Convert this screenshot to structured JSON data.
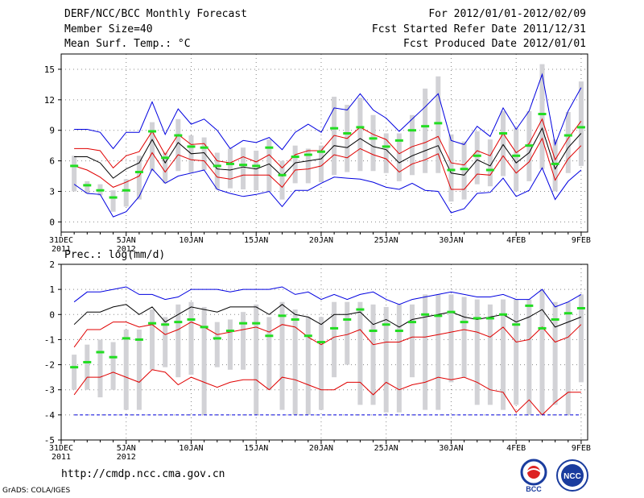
{
  "header": {
    "title": "DERF/NCC/BCC Monthly Forecast",
    "member": "Member Size=40",
    "variable": "Mean Surf. Temp.: °C",
    "period": "For 2012/01/01-2012/02/09",
    "refer": "Fcst Started Refer Date 2011/12/31",
    "produced": "Fcst Produced Date 2012/01/01"
  },
  "footer": {
    "url": "http://cmdp.ncc.cma.gov.cn",
    "grads": "GrADS: COLA/IGES",
    "logo_bcc": "BCC",
    "logo_ncc": "NCC"
  },
  "x_ticks": [
    {
      "day": 0,
      "label": "31DEC",
      "sub": "2011"
    },
    {
      "day": 5,
      "label": "5JAN",
      "sub": "2012"
    },
    {
      "day": 10,
      "label": "10JAN",
      "sub": ""
    },
    {
      "day": 15,
      "label": "15JAN",
      "sub": ""
    },
    {
      "day": 20,
      "label": "20JAN",
      "sub": ""
    },
    {
      "day": 25,
      "label": "25JAN",
      "sub": ""
    },
    {
      "day": 30,
      "label": "30JAN",
      "sub": ""
    },
    {
      "day": 35,
      "label": "4FEB",
      "sub": ""
    },
    {
      "day": 40,
      "label": "9FEB",
      "sub": ""
    }
  ],
  "chart_data": [
    {
      "type": "line",
      "title": "Mean Surf. Temp.: °C",
      "ylabel": "°C",
      "ylim": [
        -1,
        16.5
      ],
      "yticks": [
        0,
        3,
        6,
        9,
        12,
        15
      ],
      "x": [
        1,
        2,
        3,
        4,
        5,
        6,
        7,
        8,
        9,
        10,
        11,
        12,
        13,
        14,
        15,
        16,
        17,
        18,
        19,
        20,
        21,
        22,
        23,
        24,
        25,
        26,
        27,
        28,
        29,
        30,
        31,
        32,
        33,
        34,
        35,
        36,
        37,
        38,
        39,
        40
      ],
      "series": [
        {
          "name": "max",
          "color": "#0000e0",
          "values": [
            9.1,
            9.1,
            8.8,
            7.2,
            8.8,
            8.8,
            11.8,
            8.6,
            11.1,
            9.6,
            10.1,
            9.0,
            7.2,
            8.0,
            7.8,
            8.3,
            7.1,
            8.8,
            9.6,
            8.8,
            11.2,
            11.0,
            12.6,
            11.0,
            10.2,
            8.9,
            10.1,
            11.3,
            12.6,
            8.0,
            7.6,
            9.4,
            8.4,
            11.2,
            9.1,
            10.9,
            14.5,
            7.6,
            10.9,
            13.2
          ]
        },
        {
          "name": "upper",
          "color": "#e00000",
          "values": [
            7.2,
            7.2,
            7.0,
            5.3,
            6.5,
            6.9,
            8.9,
            6.6,
            8.6,
            7.6,
            7.7,
            6.0,
            5.8,
            6.4,
            5.9,
            6.6,
            5.3,
            6.6,
            7.0,
            7.0,
            8.5,
            8.2,
            9.3,
            8.6,
            8.1,
            6.7,
            7.4,
            7.8,
            8.4,
            5.8,
            5.6,
            7.0,
            6.5,
            8.7,
            6.8,
            7.7,
            10.1,
            6.1,
            8.2,
            9.9
          ]
        },
        {
          "name": "mean",
          "color": "#000000",
          "values": [
            6.4,
            6.4,
            5.8,
            4.3,
            5.2,
            5.8,
            8.1,
            5.8,
            7.8,
            6.7,
            6.8,
            5.2,
            5.1,
            5.4,
            5.2,
            5.7,
            4.5,
            5.8,
            6.0,
            6.2,
            7.5,
            7.3,
            8.2,
            7.4,
            7.1,
            5.8,
            6.5,
            7.0,
            7.5,
            4.8,
            4.6,
            6.1,
            5.5,
            7.6,
            5.8,
            6.8,
            9.2,
            5.2,
            7.3,
            8.7
          ]
        },
        {
          "name": "lower",
          "color": "#e00000",
          "values": [
            5.5,
            5.1,
            4.4,
            3.4,
            3.9,
            4.5,
            6.8,
            4.9,
            6.6,
            6.1,
            6.0,
            4.4,
            4.2,
            4.6,
            4.6,
            4.6,
            3.4,
            5.1,
            5.2,
            5.5,
            6.6,
            6.3,
            7.2,
            6.6,
            6.2,
            4.9,
            5.7,
            6.1,
            6.7,
            3.2,
            3.2,
            4.7,
            4.6,
            6.5,
            4.8,
            5.9,
            8.2,
            4.1,
            6.2,
            7.5
          ]
        },
        {
          "name": "min",
          "color": "#0000e0",
          "values": [
            3.7,
            2.8,
            2.7,
            0.5,
            1.0,
            2.5,
            5.2,
            3.8,
            4.5,
            4.8,
            5.1,
            3.2,
            2.8,
            2.5,
            2.7,
            3.0,
            1.5,
            3.1,
            3.1,
            3.8,
            4.4,
            4.3,
            4.2,
            3.9,
            3.4,
            3.2,
            3.8,
            3.1,
            3.0,
            0.9,
            1.3,
            2.8,
            2.9,
            4.3,
            2.5,
            3.1,
            5.3,
            2.2,
            4.0,
            5.1
          ]
        }
      ],
      "observed": {
        "name": "observed",
        "color": "#22dd22",
        "values": [
          5.5,
          3.6,
          3.1,
          2.4,
          3.1,
          4.9,
          8.9,
          6.3,
          8.5,
          7.4,
          7.3,
          5.5,
          5.7,
          5.6,
          5.5,
          7.3,
          4.6,
          6.4,
          6.6,
          6.9,
          9.2,
          8.7,
          9.3,
          8.2,
          7.4,
          8.0,
          9.0,
          9.4,
          9.7,
          5.1,
          5.2,
          6.5,
          5.1,
          8.7,
          6.5,
          7.5,
          10.6,
          5.7,
          8.5,
          9.3
        ]
      },
      "box_low": [
        3.0,
        2.8,
        2.6,
        1.0,
        1.5,
        2.2,
        5.0,
        3.8,
        5.0,
        4.8,
        5.1,
        3.2,
        3.3,
        3.2,
        3.1,
        3.0,
        2.2,
        3.8,
        3.8,
        3.9,
        4.6,
        4.9,
        5.0,
        5.0,
        4.8,
        4.0,
        4.6,
        4.8,
        4.8,
        2.0,
        2.2,
        3.7,
        3.5,
        4.5,
        3.0,
        4.0,
        5.2,
        3.0,
        4.8,
        5.5
      ],
      "box_high": [
        6.5,
        4.0,
        3.7,
        3.1,
        4.2,
        6.5,
        9.8,
        6.8,
        10.1,
        8.5,
        8.3,
        6.8,
        7.2,
        7.3,
        7.0,
        8.1,
        6.0,
        7.5,
        7.2,
        7.5,
        12.3,
        11.5,
        12.2,
        10.5,
        8.7,
        8.7,
        10.5,
        13.1,
        14.3,
        8.6,
        7.9,
        8.9,
        8.1,
        10.9,
        9.2,
        10.9,
        15.5,
        8.1,
        10.8,
        13.8
      ]
    },
    {
      "type": "line",
      "title": "Prec.: log(mm/d)",
      "ylabel": "log(mm/d)",
      "ylim": [
        -5,
        2
      ],
      "yticks": [
        -5,
        -4,
        -3,
        -2,
        -1,
        0,
        1,
        2
      ],
      "x": [
        1,
        2,
        3,
        4,
        5,
        6,
        7,
        8,
        9,
        10,
        11,
        12,
        13,
        14,
        15,
        16,
        17,
        18,
        19,
        20,
        21,
        22,
        23,
        24,
        25,
        26,
        27,
        28,
        29,
        30,
        31,
        32,
        33,
        34,
        35,
        36,
        37,
        38,
        39,
        40
      ],
      "series": [
        {
          "name": "max",
          "color": "#0000e0",
          "values": [
            0.5,
            0.9,
            0.9,
            1.0,
            1.1,
            0.8,
            0.8,
            0.6,
            0.7,
            1.0,
            1.0,
            1.0,
            0.9,
            1.0,
            1.0,
            1.0,
            1.1,
            0.8,
            0.9,
            0.6,
            0.8,
            0.6,
            0.8,
            0.9,
            0.6,
            0.4,
            0.6,
            0.7,
            0.8,
            0.9,
            0.8,
            0.7,
            0.7,
            0.8,
            0.6,
            0.6,
            1.0,
            0.3,
            0.5,
            0.8
          ]
        },
        {
          "name": "upper",
          "color": "#000000",
          "values": [
            -0.4,
            0.1,
            0.1,
            0.3,
            0.4,
            0.0,
            0.3,
            -0.3,
            0.0,
            0.3,
            0.2,
            0.1,
            0.3,
            0.3,
            0.3,
            0.0,
            0.4,
            0.0,
            -0.1,
            -0.4,
            0.0,
            0.0,
            0.1,
            -0.4,
            -0.2,
            -0.5,
            -0.2,
            -0.1,
            0.0,
            0.1,
            -0.1,
            -0.2,
            -0.1,
            0.0,
            -0.3,
            -0.1,
            0.2,
            -0.5,
            -0.3,
            -0.1
          ]
        },
        {
          "name": "mean",
          "color": "#e00000",
          "values": [
            -1.3,
            -0.6,
            -0.6,
            -0.3,
            -0.3,
            -0.5,
            -0.4,
            -0.8,
            -0.6,
            -0.3,
            -0.5,
            -0.8,
            -0.7,
            -0.6,
            -0.5,
            -0.7,
            -0.4,
            -0.5,
            -0.9,
            -1.2,
            -0.9,
            -0.8,
            -0.6,
            -1.2,
            -1.1,
            -1.1,
            -0.9,
            -0.9,
            -0.8,
            -0.7,
            -0.6,
            -0.7,
            -0.9,
            -0.5,
            -1.1,
            -1.0,
            -0.5,
            -1.1,
            -0.9,
            -0.4
          ]
        },
        {
          "name": "lower",
          "color": "#e00000",
          "values": [
            -3.2,
            -2.5,
            -2.5,
            -2.3,
            -2.5,
            -2.7,
            -2.2,
            -2.3,
            -2.8,
            -2.5,
            -2.7,
            -2.9,
            -2.7,
            -2.6,
            -2.6,
            -3.0,
            -2.5,
            -2.6,
            -2.8,
            -3.0,
            -3.0,
            -2.7,
            -2.7,
            -3.2,
            -2.7,
            -3.0,
            -2.8,
            -2.7,
            -2.5,
            -2.6,
            -2.5,
            -2.7,
            -3.0,
            -3.1,
            -3.9,
            -3.4,
            -4.0,
            -3.5,
            -3.1,
            -3.1
          ]
        },
        {
          "name": "min",
          "color": "#0000e0",
          "values": [
            -4,
            -4,
            -4,
            -4,
            -4,
            -4,
            -4,
            -4,
            -4,
            -4,
            -4,
            -4,
            -4,
            -4,
            -4,
            -4,
            -4,
            -4,
            -4,
            -4,
            -4,
            -4,
            -4,
            -4,
            -4,
            -4,
            -4,
            -4,
            -4,
            -4,
            -4,
            -4,
            -4,
            -4,
            -4,
            -4,
            -4,
            -4,
            -4,
            -4
          ]
        }
      ],
      "observed": {
        "name": "observed",
        "color": "#22dd22",
        "values": [
          -2.1,
          -1.9,
          -1.5,
          -1.7,
          -0.95,
          -1.0,
          -0.35,
          -0.4,
          -0.3,
          -0.2,
          -0.5,
          -0.95,
          -0.65,
          -0.35,
          -0.35,
          -0.85,
          -0.05,
          -0.2,
          -0.85,
          -1.1,
          -0.55,
          -0.2,
          0.2,
          -0.65,
          -0.4,
          -0.65,
          -0.3,
          0.0,
          -0.05,
          0.1,
          -0.3,
          -0.15,
          -0.15,
          0.0,
          -0.4,
          0.35,
          -0.55,
          -0.2,
          0.05,
          0.25
        ]
      },
      "box_low": [
        -3.0,
        -3.0,
        -3.3,
        -3.0,
        -3.8,
        -3.8,
        -2.2,
        -2.1,
        -2.5,
        -2.4,
        -4.0,
        -2.1,
        -2.2,
        -2.2,
        -4.0,
        -3.0,
        -3.8,
        -4.0,
        -4.0,
        -3.8,
        -2.5,
        -2.0,
        -3.6,
        -3.6,
        -3.9,
        -3.9,
        -2.5,
        -3.8,
        -3.8,
        -2.7,
        -2.5,
        -3.6,
        -3.6,
        -3.8,
        -3.6,
        -4.0,
        -4.0,
        -3.6,
        -4.0,
        -2.7
      ],
      "box_high": [
        -1.6,
        -1.2,
        -1.0,
        -1.1,
        -0.6,
        -0.6,
        0.2,
        -0.1,
        0.4,
        0.5,
        0.3,
        -0.3,
        -0.2,
        0.1,
        0.4,
        -0.1,
        0.5,
        0.2,
        -0.1,
        -0.1,
        0.5,
        0.5,
        0.5,
        0.4,
        0.3,
        0.4,
        0.4,
        0.8,
        0.8,
        0.8,
        0.7,
        0.6,
        0.4,
        0.6,
        0.6,
        0.6,
        1.0,
        0.5,
        0.5,
        0.8
      ]
    }
  ]
}
